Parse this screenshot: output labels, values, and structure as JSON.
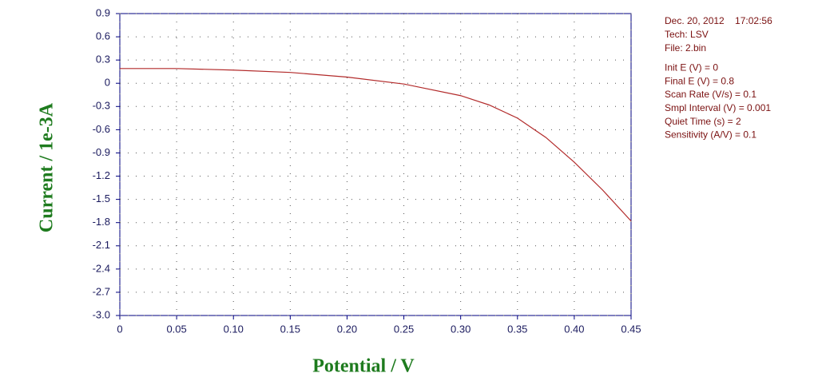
{
  "chart_data": {
    "type": "line",
    "xlabel": "Potential / V",
    "ylabel": "Current / 1e-3A",
    "x": [
      0,
      0.05,
      0.1,
      0.15,
      0.2,
      0.25,
      0.3,
      0.325,
      0.35,
      0.375,
      0.4,
      0.425,
      0.45
    ],
    "series": [
      {
        "color": "#b22a2a",
        "values": [
          0.19,
          0.19,
          0.17,
          0.14,
          0.08,
          -0.01,
          -0.16,
          -0.28,
          -0.45,
          -0.7,
          -1.02,
          -1.38,
          -1.78
        ]
      }
    ],
    "xlim": [
      0,
      0.45
    ],
    "xticks": [
      0,
      0.05,
      {
        "value": 0.1,
        "label": "0.10"
      },
      0.15,
      {
        "value": 0.2,
        "label": "0.20"
      },
      0.25,
      {
        "value": 0.3,
        "label": "0.30"
      },
      0.35,
      {
        "value": 0.4,
        "label": "0.40"
      },
      0.45
    ],
    "ylim": [
      -3,
      0.9
    ],
    "yticks": [
      0.9,
      0.6,
      0.3,
      0,
      -0.3,
      -0.6,
      -0.9,
      -1.2,
      -1.5,
      -1.8,
      -2.1,
      -2.4,
      -2.7,
      {
        "value": -3,
        "label": "-3.0"
      }
    ],
    "grid": true,
    "annotations": [
      "Dec. 20, 2012    17:02:56",
      "Tech: LSV",
      "File: 2.bin",
      "Init E (V) = 0",
      "Final E (V) = 0.8",
      "Scan Rate (V/s) = 0.1",
      "Smpl Interval (V) = 0.001",
      "Quiet Time (s) = 2",
      "Sensitivity (A/V) = 0.1"
    ]
  }
}
